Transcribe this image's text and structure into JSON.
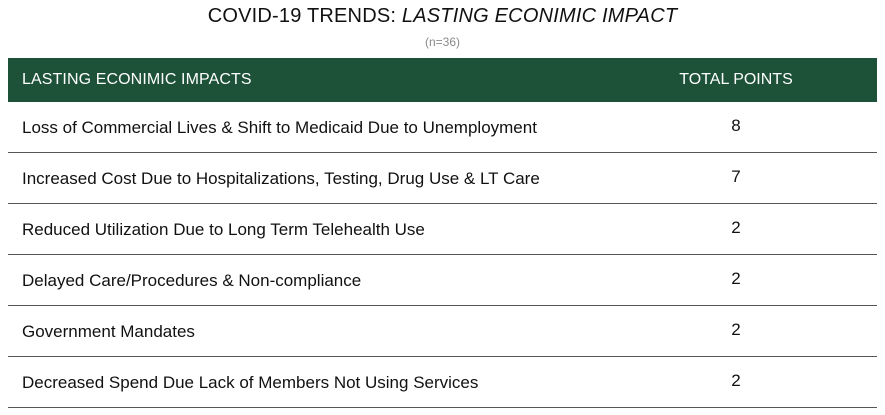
{
  "title": {
    "prefix": "COVID-19 TRENDS:",
    "italic": "LASTING ECONIMIC IMPACT"
  },
  "subtitle": "(n=36)",
  "table": {
    "headers": [
      "LASTING ECONIMIC IMPACTS",
      "TOTAL POINTS"
    ],
    "rows": [
      {
        "impact": "Loss of Commercial Lives & Shift to Medicaid Due to Unemployment",
        "points": "8"
      },
      {
        "impact": "Increased Cost Due to Hospitalizations, Testing, Drug Use & LT Care",
        "points": "7"
      },
      {
        "impact": "Reduced Utilization Due to Long Term Telehealth Use",
        "points": "2"
      },
      {
        "impact": "Delayed Care/Procedures & Non-compliance",
        "points": "2"
      },
      {
        "impact": "Government Mandates",
        "points": "2"
      },
      {
        "impact": "Decreased Spend Due Lack of Members Not Using Services",
        "points": "2"
      }
    ],
    "header_color": "#1d5138"
  }
}
